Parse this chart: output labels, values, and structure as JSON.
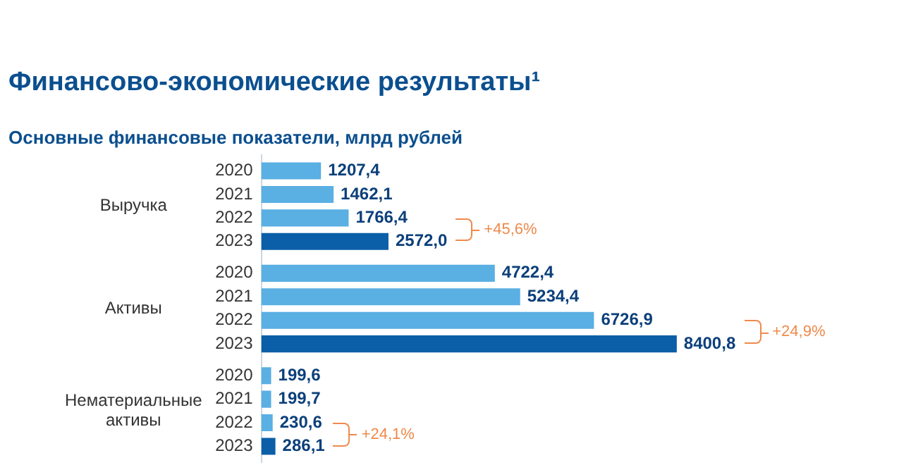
{
  "chart_data": {
    "type": "bar",
    "orientation": "horizontal",
    "title": "Финансово-экономические результаты¹",
    "subtitle": "Основные финансовые показатели, млрд рублей",
    "categories": [
      "Выручка",
      "Активы",
      "Нематериальные активы"
    ],
    "series": [
      {
        "name": "2020",
        "color": "#5aafe3",
        "values": [
          1207.4,
          4722.4,
          199.6
        ],
        "value_labels": [
          "1207,4",
          "4722,4",
          "199,6"
        ]
      },
      {
        "name": "2021",
        "color": "#5aafe3",
        "values": [
          1462.1,
          5234.4,
          199.7
        ],
        "value_labels": [
          "1462,1",
          "5234,4",
          "199,7"
        ]
      },
      {
        "name": "2022",
        "color": "#5aafe3",
        "values": [
          1766.4,
          6726.9,
          230.6
        ],
        "value_labels": [
          "1766,4",
          "6726,9",
          "230,6"
        ]
      },
      {
        "name": "2023",
        "color": "#0b5ea8",
        "values": [
          2572.0,
          8400.8,
          286.1
        ],
        "value_labels": [
          "2572,0",
          "8400,8",
          "286,1"
        ]
      }
    ],
    "annotations": [
      "+45,6%",
      "+24,9%",
      "+24,1%"
    ],
    "legend": false,
    "grid": false
  }
}
